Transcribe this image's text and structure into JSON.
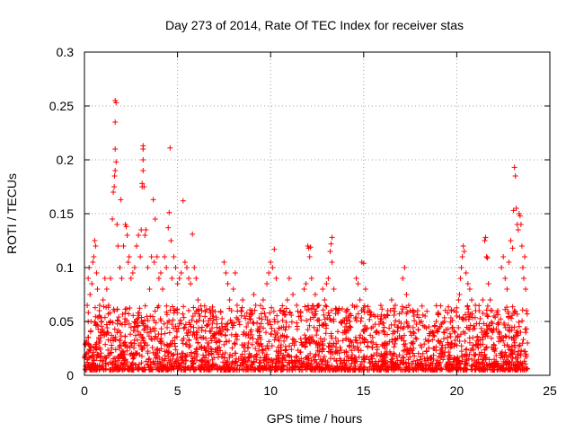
{
  "chart_data": {
    "type": "scatter",
    "title": "Day 273 of 2014, Rate Of TEC Index for receiver stas",
    "xlabel": "GPS time / hours",
    "ylabel": "ROTI / TECUs",
    "xlim": [
      0,
      25
    ],
    "ylim": [
      0,
      0.3
    ],
    "xticks": [
      0,
      5,
      10,
      15,
      20,
      25
    ],
    "xtick_labels": [
      "0",
      "5",
      "10",
      "15",
      "20",
      "25"
    ],
    "yticks": [
      0,
      0.05,
      0.1,
      0.15,
      0.2,
      0.25,
      0.3
    ],
    "ytick_labels": [
      "0",
      "0.05",
      "0.1",
      "0.15",
      "0.2",
      "0.25",
      "0.3"
    ],
    "grid": true,
    "marker": "+",
    "color": "#ff0000",
    "series": [
      {
        "name": "ROTI",
        "points": [
          [
            0.1,
            0.03
          ],
          [
            0.15,
            0.065
          ],
          [
            0.2,
            0.09
          ],
          [
            0.25,
            0.1
          ],
          [
            0.3,
            0.075
          ],
          [
            0.35,
            0.05
          ],
          [
            0.4,
            0.085
          ],
          [
            0.45,
            0.105
          ],
          [
            0.5,
            0.11
          ],
          [
            0.55,
            0.125
          ],
          [
            0.6,
            0.12
          ],
          [
            0.65,
            0.095
          ],
          [
            0.7,
            0.08
          ],
          [
            0.8,
            0.06
          ],
          [
            0.9,
            0.05
          ],
          [
            1.0,
            0.07
          ],
          [
            1.1,
            0.09
          ],
          [
            1.2,
            0.08
          ],
          [
            1.3,
            0.065
          ],
          [
            1.4,
            0.09
          ],
          [
            1.5,
            0.145
          ],
          [
            1.55,
            0.17
          ],
          [
            1.6,
            0.175
          ],
          [
            1.62,
            0.185
          ],
          [
            1.65,
            0.19
          ],
          [
            1.65,
            0.21
          ],
          [
            1.65,
            0.235
          ],
          [
            1.65,
            0.255
          ],
          [
            1.7,
            0.253
          ],
          [
            1.7,
            0.198
          ],
          [
            1.75,
            0.14
          ],
          [
            1.8,
            0.12
          ],
          [
            1.9,
            0.1
          ],
          [
            1.95,
            0.163
          ],
          [
            2.0,
            0.09
          ],
          [
            2.1,
            0.12
          ],
          [
            2.2,
            0.14
          ],
          [
            2.25,
            0.138
          ],
          [
            2.3,
            0.13
          ],
          [
            2.35,
            0.105
          ],
          [
            2.4,
            0.11
          ],
          [
            2.5,
            0.09
          ],
          [
            2.6,
            0.095
          ],
          [
            2.7,
            0.1
          ],
          [
            2.8,
            0.12
          ],
          [
            2.9,
            0.13
          ],
          [
            3.0,
            0.11
          ],
          [
            3.05,
            0.135
          ],
          [
            3.1,
            0.178
          ],
          [
            3.1,
            0.175
          ],
          [
            3.15,
            0.19
          ],
          [
            3.15,
            0.2
          ],
          [
            3.15,
            0.21
          ],
          [
            3.15,
            0.213
          ],
          [
            3.2,
            0.175
          ],
          [
            3.25,
            0.13
          ],
          [
            3.3,
            0.135
          ],
          [
            3.4,
            0.1
          ],
          [
            3.5,
            0.08
          ],
          [
            3.6,
            0.11
          ],
          [
            3.7,
            0.163
          ],
          [
            3.75,
            0.105
          ],
          [
            3.8,
            0.145
          ],
          [
            3.9,
            0.11
          ],
          [
            4.0,
            0.09
          ],
          [
            4.1,
            0.095
          ],
          [
            4.2,
            0.08
          ],
          [
            4.3,
            0.11
          ],
          [
            4.4,
            0.1
          ],
          [
            4.5,
            0.137
          ],
          [
            4.55,
            0.151
          ],
          [
            4.6,
            0.211
          ],
          [
            4.65,
            0.125
          ],
          [
            4.7,
            0.09
          ],
          [
            4.8,
            0.11
          ],
          [
            4.9,
            0.1
          ],
          [
            5.0,
            0.085
          ],
          [
            5.1,
            0.09
          ],
          [
            5.2,
            0.095
          ],
          [
            5.3,
            0.162
          ],
          [
            5.4,
            0.105
          ],
          [
            5.5,
            0.1
          ],
          [
            5.6,
            0.09
          ],
          [
            5.7,
            0.085
          ],
          [
            5.8,
            0.131
          ],
          [
            5.9,
            0.1
          ],
          [
            6.0,
            0.09
          ],
          [
            6.1,
            0.07
          ],
          [
            6.2,
            0.055
          ],
          [
            6.3,
            0.06
          ],
          [
            6.4,
            0.035
          ],
          [
            6.6,
            0.03
          ],
          [
            6.8,
            0.025
          ],
          [
            7.0,
            0.035
          ],
          [
            7.2,
            0.04
          ],
          [
            7.4,
            0.045
          ],
          [
            7.5,
            0.105
          ],
          [
            7.6,
            0.095
          ],
          [
            7.7,
            0.085
          ],
          [
            7.8,
            0.07
          ],
          [
            7.9,
            0.06
          ],
          [
            8.0,
            0.08
          ],
          [
            8.1,
            0.095
          ],
          [
            8.2,
            0.065
          ],
          [
            8.3,
            0.05
          ],
          [
            8.5,
            0.07
          ],
          [
            8.6,
            0.055
          ],
          [
            8.7,
            0.045
          ],
          [
            8.8,
            0.03
          ],
          [
            9.0,
            0.06
          ],
          [
            9.1,
            0.075
          ],
          [
            9.2,
            0.065
          ],
          [
            9.4,
            0.045
          ],
          [
            9.6,
            0.07
          ],
          [
            9.8,
            0.085
          ],
          [
            9.9,
            0.095
          ],
          [
            10.0,
            0.105
          ],
          [
            10.1,
            0.1
          ],
          [
            10.2,
            0.117
          ],
          [
            10.3,
            0.09
          ],
          [
            10.5,
            0.06
          ],
          [
            10.7,
            0.045
          ],
          [
            10.9,
            0.07
          ],
          [
            11.0,
            0.09
          ],
          [
            11.2,
            0.075
          ],
          [
            11.4,
            0.065
          ],
          [
            11.6,
            0.055
          ],
          [
            11.8,
            0.08
          ],
          [
            11.9,
            0.085
          ],
          [
            12.0,
            0.12
          ],
          [
            12.05,
            0.118
          ],
          [
            12.1,
            0.11
          ],
          [
            12.15,
            0.119
          ],
          [
            12.2,
            0.09
          ],
          [
            12.4,
            0.075
          ],
          [
            12.6,
            0.065
          ],
          [
            12.8,
            0.08
          ],
          [
            12.9,
            0.07
          ],
          [
            13.0,
            0.085
          ],
          [
            13.1,
            0.09
          ],
          [
            13.2,
            0.115
          ],
          [
            13.25,
            0.122
          ],
          [
            13.3,
            0.128
          ],
          [
            13.3,
            0.105
          ],
          [
            13.4,
            0.08
          ],
          [
            13.6,
            0.06
          ],
          [
            13.8,
            0.05
          ],
          [
            14.0,
            0.045
          ],
          [
            14.2,
            0.055
          ],
          [
            14.4,
            0.065
          ],
          [
            14.6,
            0.09
          ],
          [
            14.7,
            0.085
          ],
          [
            14.8,
            0.07
          ],
          [
            14.9,
            0.105
          ],
          [
            15.0,
            0.104
          ],
          [
            15.1,
            0.08
          ],
          [
            15.3,
            0.06
          ],
          [
            15.5,
            0.045
          ],
          [
            15.7,
            0.04
          ],
          [
            15.9,
            0.05
          ],
          [
            16.1,
            0.055
          ],
          [
            16.3,
            0.06
          ],
          [
            16.5,
            0.07
          ],
          [
            16.7,
            0.065
          ],
          [
            16.9,
            0.05
          ],
          [
            17.1,
            0.09
          ],
          [
            17.2,
            0.1
          ],
          [
            17.3,
            0.075
          ],
          [
            17.5,
            0.06
          ],
          [
            17.7,
            0.055
          ],
          [
            17.9,
            0.06
          ],
          [
            18.1,
            0.05
          ],
          [
            18.3,
            0.055
          ],
          [
            18.5,
            0.045
          ],
          [
            18.7,
            0.04
          ],
          [
            18.9,
            0.05
          ],
          [
            19.1,
            0.045
          ],
          [
            19.3,
            0.04
          ],
          [
            19.5,
            0.035
          ],
          [
            19.7,
            0.03
          ],
          [
            19.9,
            0.04
          ],
          [
            20.0,
            0.055
          ],
          [
            20.1,
            0.07
          ],
          [
            20.15,
            0.075
          ],
          [
            20.2,
            0.09
          ],
          [
            20.25,
            0.1
          ],
          [
            20.3,
            0.11
          ],
          [
            20.35,
            0.12
          ],
          [
            20.4,
            0.115
          ],
          [
            20.5,
            0.095
          ],
          [
            20.6,
            0.085
          ],
          [
            20.7,
            0.08
          ],
          [
            20.8,
            0.07
          ],
          [
            21.0,
            0.065
          ],
          [
            21.2,
            0.06
          ],
          [
            21.4,
            0.07
          ],
          [
            21.5,
            0.125
          ],
          [
            21.55,
            0.128
          ],
          [
            21.6,
            0.11
          ],
          [
            21.65,
            0.109
          ],
          [
            21.7,
            0.085
          ],
          [
            21.8,
            0.07
          ],
          [
            21.9,
            0.06
          ],
          [
            22.0,
            0.055
          ],
          [
            22.2,
            0.06
          ],
          [
            22.4,
            0.1
          ],
          [
            22.5,
            0.11
          ],
          [
            22.6,
            0.09
          ],
          [
            22.7,
            0.08
          ],
          [
            22.8,
            0.105
          ],
          [
            22.9,
            0.125
          ],
          [
            23.0,
            0.118
          ],
          [
            23.05,
            0.153
          ],
          [
            23.1,
            0.193
          ],
          [
            23.15,
            0.185
          ],
          [
            23.2,
            0.155
          ],
          [
            23.25,
            0.14
          ],
          [
            23.3,
            0.135
          ],
          [
            23.35,
            0.15
          ],
          [
            23.4,
            0.148
          ],
          [
            23.45,
            0.14
          ],
          [
            23.5,
            0.12
          ],
          [
            23.55,
            0.1
          ],
          [
            23.6,
            0.09
          ],
          [
            23.65,
            0.11
          ],
          [
            23.7,
            0.08
          ],
          [
            23.75,
            0.06
          ],
          [
            23.8,
            0.03
          ]
        ],
        "band": {
          "x_range": [
            0.0,
            23.8
          ],
          "typical_max": 0.06,
          "floor": 0.005
        }
      }
    ]
  }
}
